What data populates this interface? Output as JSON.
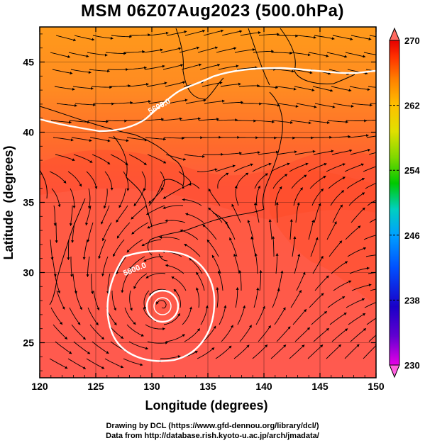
{
  "title": "MSM 06Z07Aug2023 (500.0hPa)",
  "x_axis": {
    "label": "Longitude (degrees)",
    "ticks": [
      "120",
      "125",
      "130",
      "135",
      "140",
      "145",
      "150"
    ],
    "range": [
      120,
      150
    ]
  },
  "y_axis": {
    "label": "Latitude  (degrees)",
    "ticks": [
      "25",
      "30",
      "35",
      "40",
      "45"
    ],
    "range": [
      22.5,
      47.5
    ]
  },
  "colorbar": {
    "ticks": [
      "230",
      "238",
      "246",
      "254",
      "262",
      "270"
    ],
    "range": [
      230,
      270
    ],
    "colors": [
      "#e600e6",
      "#1a00c8",
      "#0050ff",
      "#00a0ff",
      "#00d0c0",
      "#00c800",
      "#80d800",
      "#e0e000",
      "#ffc000",
      "#ff8000",
      "#ff3000",
      "#e60000"
    ]
  },
  "contours": {
    "labels": [
      "5600.0",
      "5800.0"
    ],
    "color": "#ffffff"
  },
  "map_colors": {
    "north": "#ff9c1a",
    "mid": "#ff6a28",
    "south": "#ff5a4e",
    "coast": "#000000",
    "streamline": "#000000"
  },
  "credits": [
    "Drawing by DCL (https://www.gfd-dennou.org/library/dcl/)",
    "Data from http://database.rish.kyoto-u.ac.jp/arch/jmadata/"
  ]
}
